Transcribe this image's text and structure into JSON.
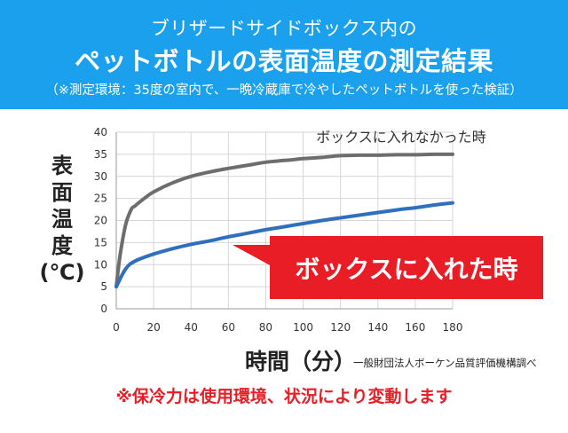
{
  "header": {
    "title_line1": "ブリザードサイドボックス内の",
    "title_line2": "ペットボトルの表面温度の測定結果",
    "note": "（※測定環境：35度の室内で、一晩冷蔵庫で冷やしたペットボトルを使った検証）"
  },
  "colors": {
    "header_bg": "#1aa0ec",
    "without_box_line": "#6d6d6d",
    "with_box_line": "#2f6fc0",
    "callout_bg": "#e81d25",
    "footnote": "#e81d25"
  },
  "chart_data": {
    "type": "line",
    "ylabel": "表面温度(℃)",
    "xlabel": "時間（分）",
    "xlim": [
      0,
      180
    ],
    "ylim": [
      0,
      40
    ],
    "x_ticks": [
      "0",
      "20",
      "40",
      "60",
      "80",
      "100",
      "120",
      "140",
      "160",
      "180"
    ],
    "y_ticks": [
      "0",
      "5",
      "10",
      "15",
      "20",
      "25",
      "30",
      "35",
      "40"
    ],
    "grid": true,
    "series": [
      {
        "name": "ボックスに入れなかった時",
        "x": [
          0,
          2,
          5,
          8,
          10,
          15,
          20,
          30,
          40,
          50,
          60,
          70,
          80,
          90,
          100,
          110,
          120,
          130,
          140,
          150,
          160,
          170,
          180
        ],
        "values": [
          5,
          12,
          19,
          22.5,
          23.3,
          25,
          26.5,
          28.5,
          30,
          31,
          31.8,
          32.5,
          33.2,
          33.6,
          34,
          34.3,
          34.7,
          34.8,
          34.8,
          34.9,
          34.9,
          35,
          35
        ]
      },
      {
        "name": "ボックスに入れた時",
        "x": [
          0,
          5,
          10,
          20,
          30,
          40,
          50,
          60,
          70,
          80,
          90,
          100,
          110,
          120,
          130,
          140,
          150,
          160,
          170,
          180
        ],
        "values": [
          5,
          9,
          10.8,
          12.4,
          13.6,
          14.6,
          15.4,
          16.3,
          17.1,
          17.9,
          18.6,
          19.3,
          20,
          20.6,
          21.2,
          21.8,
          22.4,
          22.9,
          23.5,
          24
        ]
      }
    ]
  },
  "axis": {
    "xlabel": "時間（分）",
    "ylabel_chars": [
      "表",
      "面",
      "温",
      "度",
      "(℃)"
    ]
  },
  "source": "一般財団法人ボーケン品質評価機構調べ",
  "footnote": "※保冷力は使用環境、状況により変動します"
}
